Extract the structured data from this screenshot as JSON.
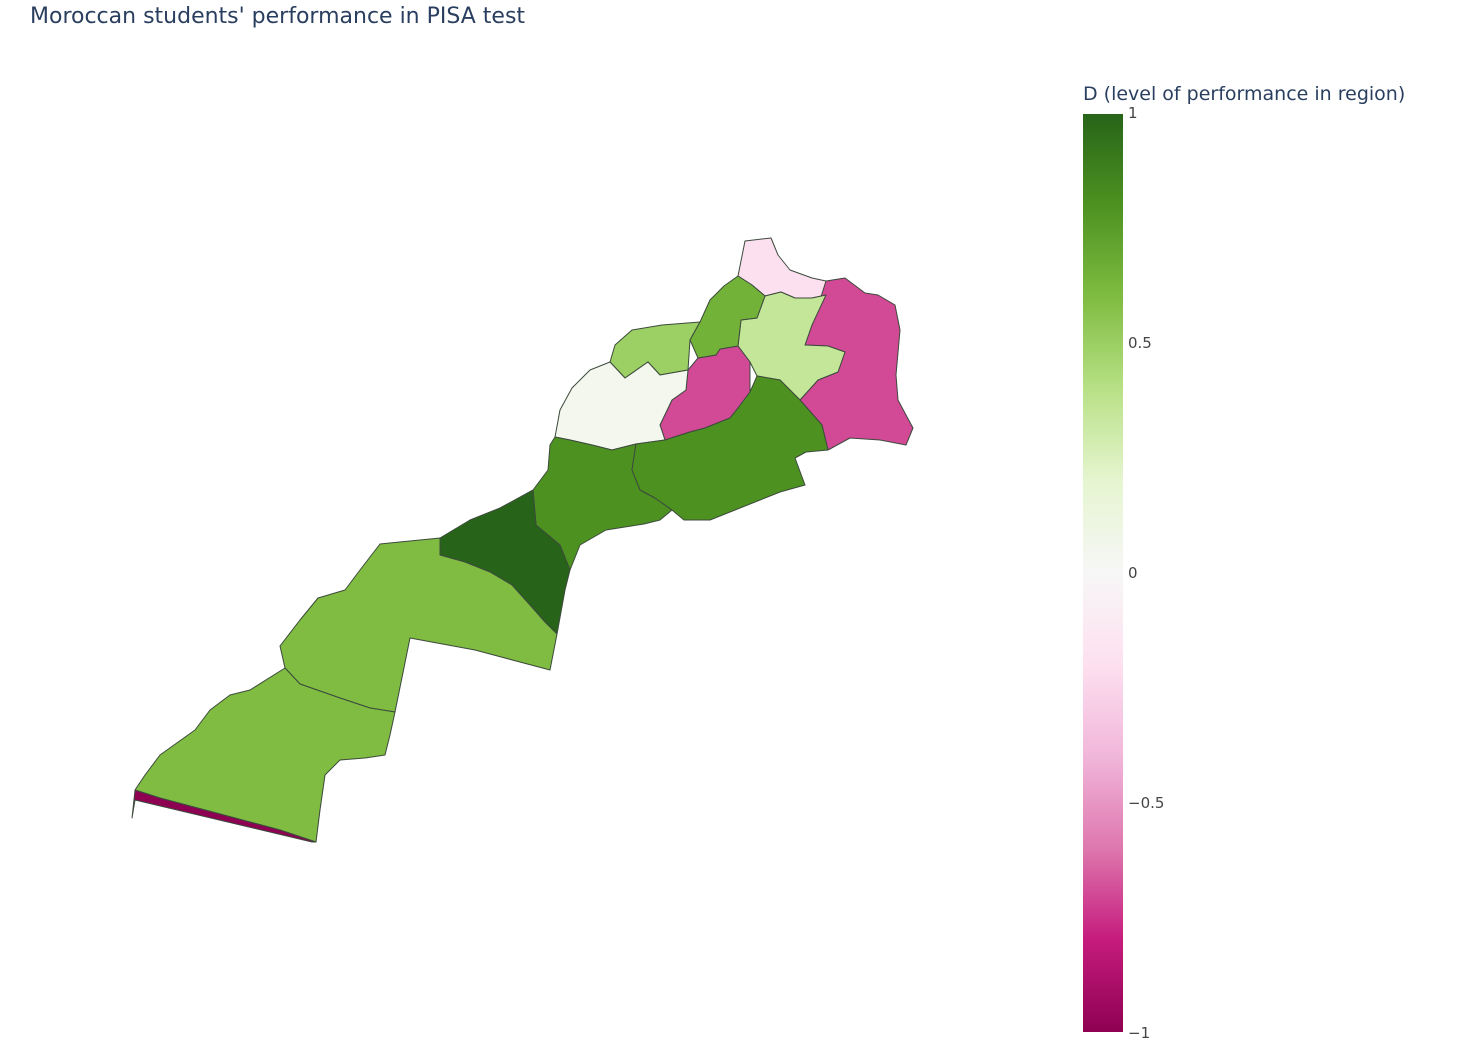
{
  "title": "Moroccan students' performance in PISA test",
  "colorbar": {
    "title": "D (level of performance in region)",
    "ticks": [
      "1",
      "0.5",
      "0",
      "−0.5",
      "−1"
    ],
    "colorscale": [
      "#8e0152",
      "#c51b7d",
      "#de77ae",
      "#f1b6da",
      "#fde0ef",
      "#f7f7f7",
      "#e6f5d0",
      "#b8e186",
      "#7fbc41",
      "#4d9221",
      "#276419"
    ],
    "range": [
      -1,
      1
    ]
  },
  "chart_data": {
    "type": "choropleth",
    "title": "Moroccan students' performance in PISA test",
    "color_label": "D (level of performance in region)",
    "zrange": [
      -1,
      1
    ],
    "regions": [
      {
        "id": "tanger-tetouan-al-hoceima",
        "value": -0.2
      },
      {
        "id": "oriental",
        "value": -0.7
      },
      {
        "id": "fes-meknes",
        "value": 0.35
      },
      {
        "id": "rabat-sale-kenitra",
        "value": 0.5
      },
      {
        "id": "beni-mellal-khenifra",
        "value": -0.7
      },
      {
        "id": "casablanca-settat",
        "value": 0.05
      },
      {
        "id": "marrakech-safi",
        "value": 0.8
      },
      {
        "id": "draa-tafilalet",
        "value": 0.8
      },
      {
        "id": "souss-massa",
        "value": 1.0
      },
      {
        "id": "guelmim-oued-noun",
        "value": 0.6
      },
      {
        "id": "laayoune-sakia-el-hamra",
        "value": 0.6
      },
      {
        "id": "dakhla-oued-ed-dahab",
        "value": -1.0
      },
      {
        "id": "north-central-region",
        "value": 0.65
      }
    ]
  }
}
